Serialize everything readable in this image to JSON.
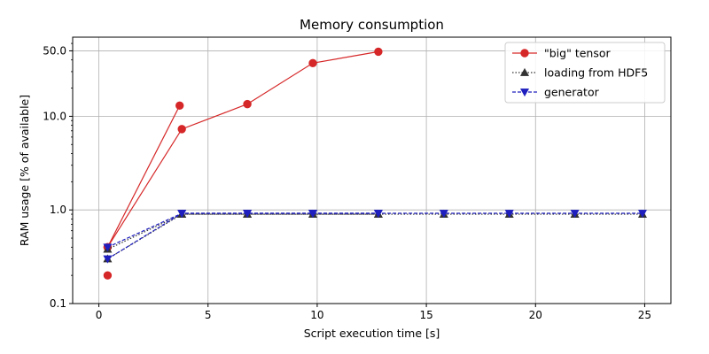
{
  "chart_data": {
    "type": "line",
    "title": "Memory consumption",
    "xlabel": "Script execution time [s]",
    "ylabel": "RAM usage [% of available]",
    "xlim": [
      -1.2,
      26.2
    ],
    "ylim": [
      0.1,
      70
    ],
    "yscale": "log",
    "xticks": [
      0,
      5,
      10,
      15,
      20,
      25
    ],
    "xtick_labels": [
      "0",
      "5",
      "10",
      "15",
      "20",
      "25"
    ],
    "yticks": [
      0.1,
      1.0,
      10.0,
      50.0
    ],
    "ytick_labels": [
      "0.1",
      "1.0",
      "10.0",
      "50.0"
    ],
    "grid": true,
    "legend_position": "top-right",
    "series": [
      {
        "name": "\"big\" tensor",
        "color": "#d62728",
        "line_style": "solid",
        "marker": "circle",
        "segments": [
          {
            "x": [
              0.4,
              3.7
            ],
            "y": [
              0.4,
              13.0
            ]
          },
          {
            "x": [
              0.4,
              3.8,
              6.8,
              9.8,
              12.8
            ],
            "y": [
              0.4,
              7.3,
              13.5,
              37.0,
              49.0
            ]
          }
        ],
        "points": [
          {
            "x": 0.4,
            "y": 0.2
          }
        ]
      },
      {
        "name": "loading from HDF5",
        "color": "#333333",
        "line_style": "dotted",
        "marker": "triangle-up",
        "segments": [
          {
            "x": [
              0.4,
              3.8,
              6.8,
              9.8,
              12.8,
              15.8,
              18.8,
              21.8,
              24.9
            ],
            "y": [
              0.38,
              0.9,
              0.9,
              0.9,
              0.9,
              0.9,
              0.9,
              0.9,
              0.9
            ]
          },
          {
            "x": [
              0.4,
              3.8,
              6.8,
              9.8,
              12.8
            ],
            "y": [
              0.3,
              0.9,
              0.9,
              0.9,
              0.9
            ]
          }
        ],
        "points": []
      },
      {
        "name": "generator",
        "color": "#1f1fbf",
        "line_style": "dashed",
        "marker": "triangle-down",
        "segments": [
          {
            "x": [
              0.4,
              3.8,
              6.8,
              9.8,
              12.8,
              15.8,
              18.8,
              21.8,
              24.9
            ],
            "y": [
              0.4,
              0.92,
              0.92,
              0.92,
              0.92,
              0.92,
              0.92,
              0.92,
              0.92
            ]
          },
          {
            "x": [
              0.4,
              3.8,
              6.8,
              9.8,
              12.8
            ],
            "y": [
              0.3,
              0.92,
              0.92,
              0.92,
              0.92
            ]
          }
        ],
        "points": []
      }
    ]
  }
}
